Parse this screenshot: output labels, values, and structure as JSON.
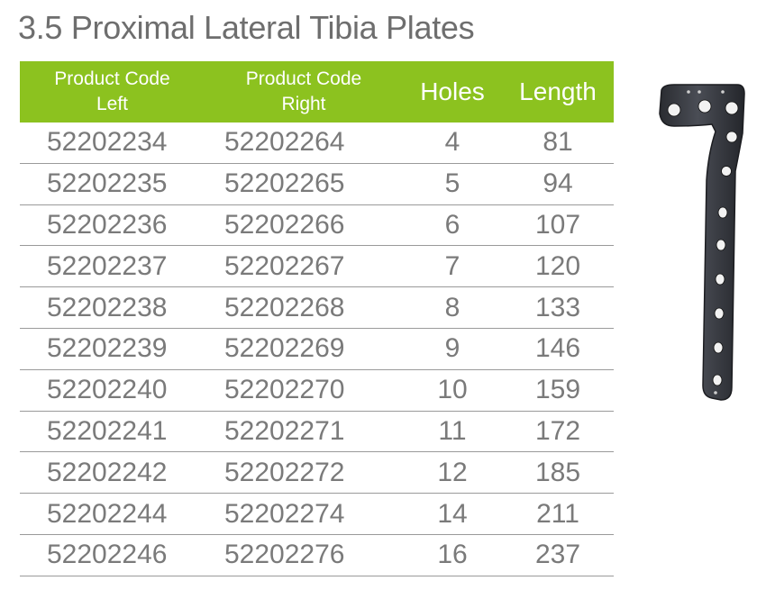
{
  "title": "3.5 Proximal Lateral Tibia Plates",
  "table": {
    "headers": {
      "left_line1": "Product Code",
      "left_line2": "Left",
      "right_line1": "Product Code",
      "right_line2": "Right",
      "holes": "Holes",
      "length": "Length"
    },
    "rows": [
      {
        "left": "52202234",
        "right": "52202264",
        "holes": "4",
        "length": "81"
      },
      {
        "left": "52202235",
        "right": "52202265",
        "holes": "5",
        "length": "94"
      },
      {
        "left": "52202236",
        "right": "52202266",
        "holes": "6",
        "length": "107"
      },
      {
        "left": "52202237",
        "right": "52202267",
        "holes": "7",
        "length": "120"
      },
      {
        "left": "52202238",
        "right": "52202268",
        "holes": "8",
        "length": "133"
      },
      {
        "left": "52202239",
        "right": "52202269",
        "holes": "9",
        "length": "146"
      },
      {
        "left": "52202240",
        "right": "52202270",
        "holes": "10",
        "length": "159"
      },
      {
        "left": "52202241",
        "right": "52202271",
        "holes": "11",
        "length": "172"
      },
      {
        "left": "52202242",
        "right": "52202272",
        "holes": "12",
        "length": "185"
      },
      {
        "left": "52202244",
        "right": "52202274",
        "holes": "14",
        "length": "211"
      },
      {
        "left": "52202246",
        "right": "52202276",
        "holes": "16",
        "length": "237"
      }
    ]
  },
  "colors": {
    "header_bg": "#8cc21f",
    "header_text": "#ffffff",
    "title_text": "#6e6e6e",
    "cell_text": "#7a7a7a",
    "plate_metal": "#3a3c42"
  },
  "image": {
    "icon": "tibia-plate-image"
  }
}
